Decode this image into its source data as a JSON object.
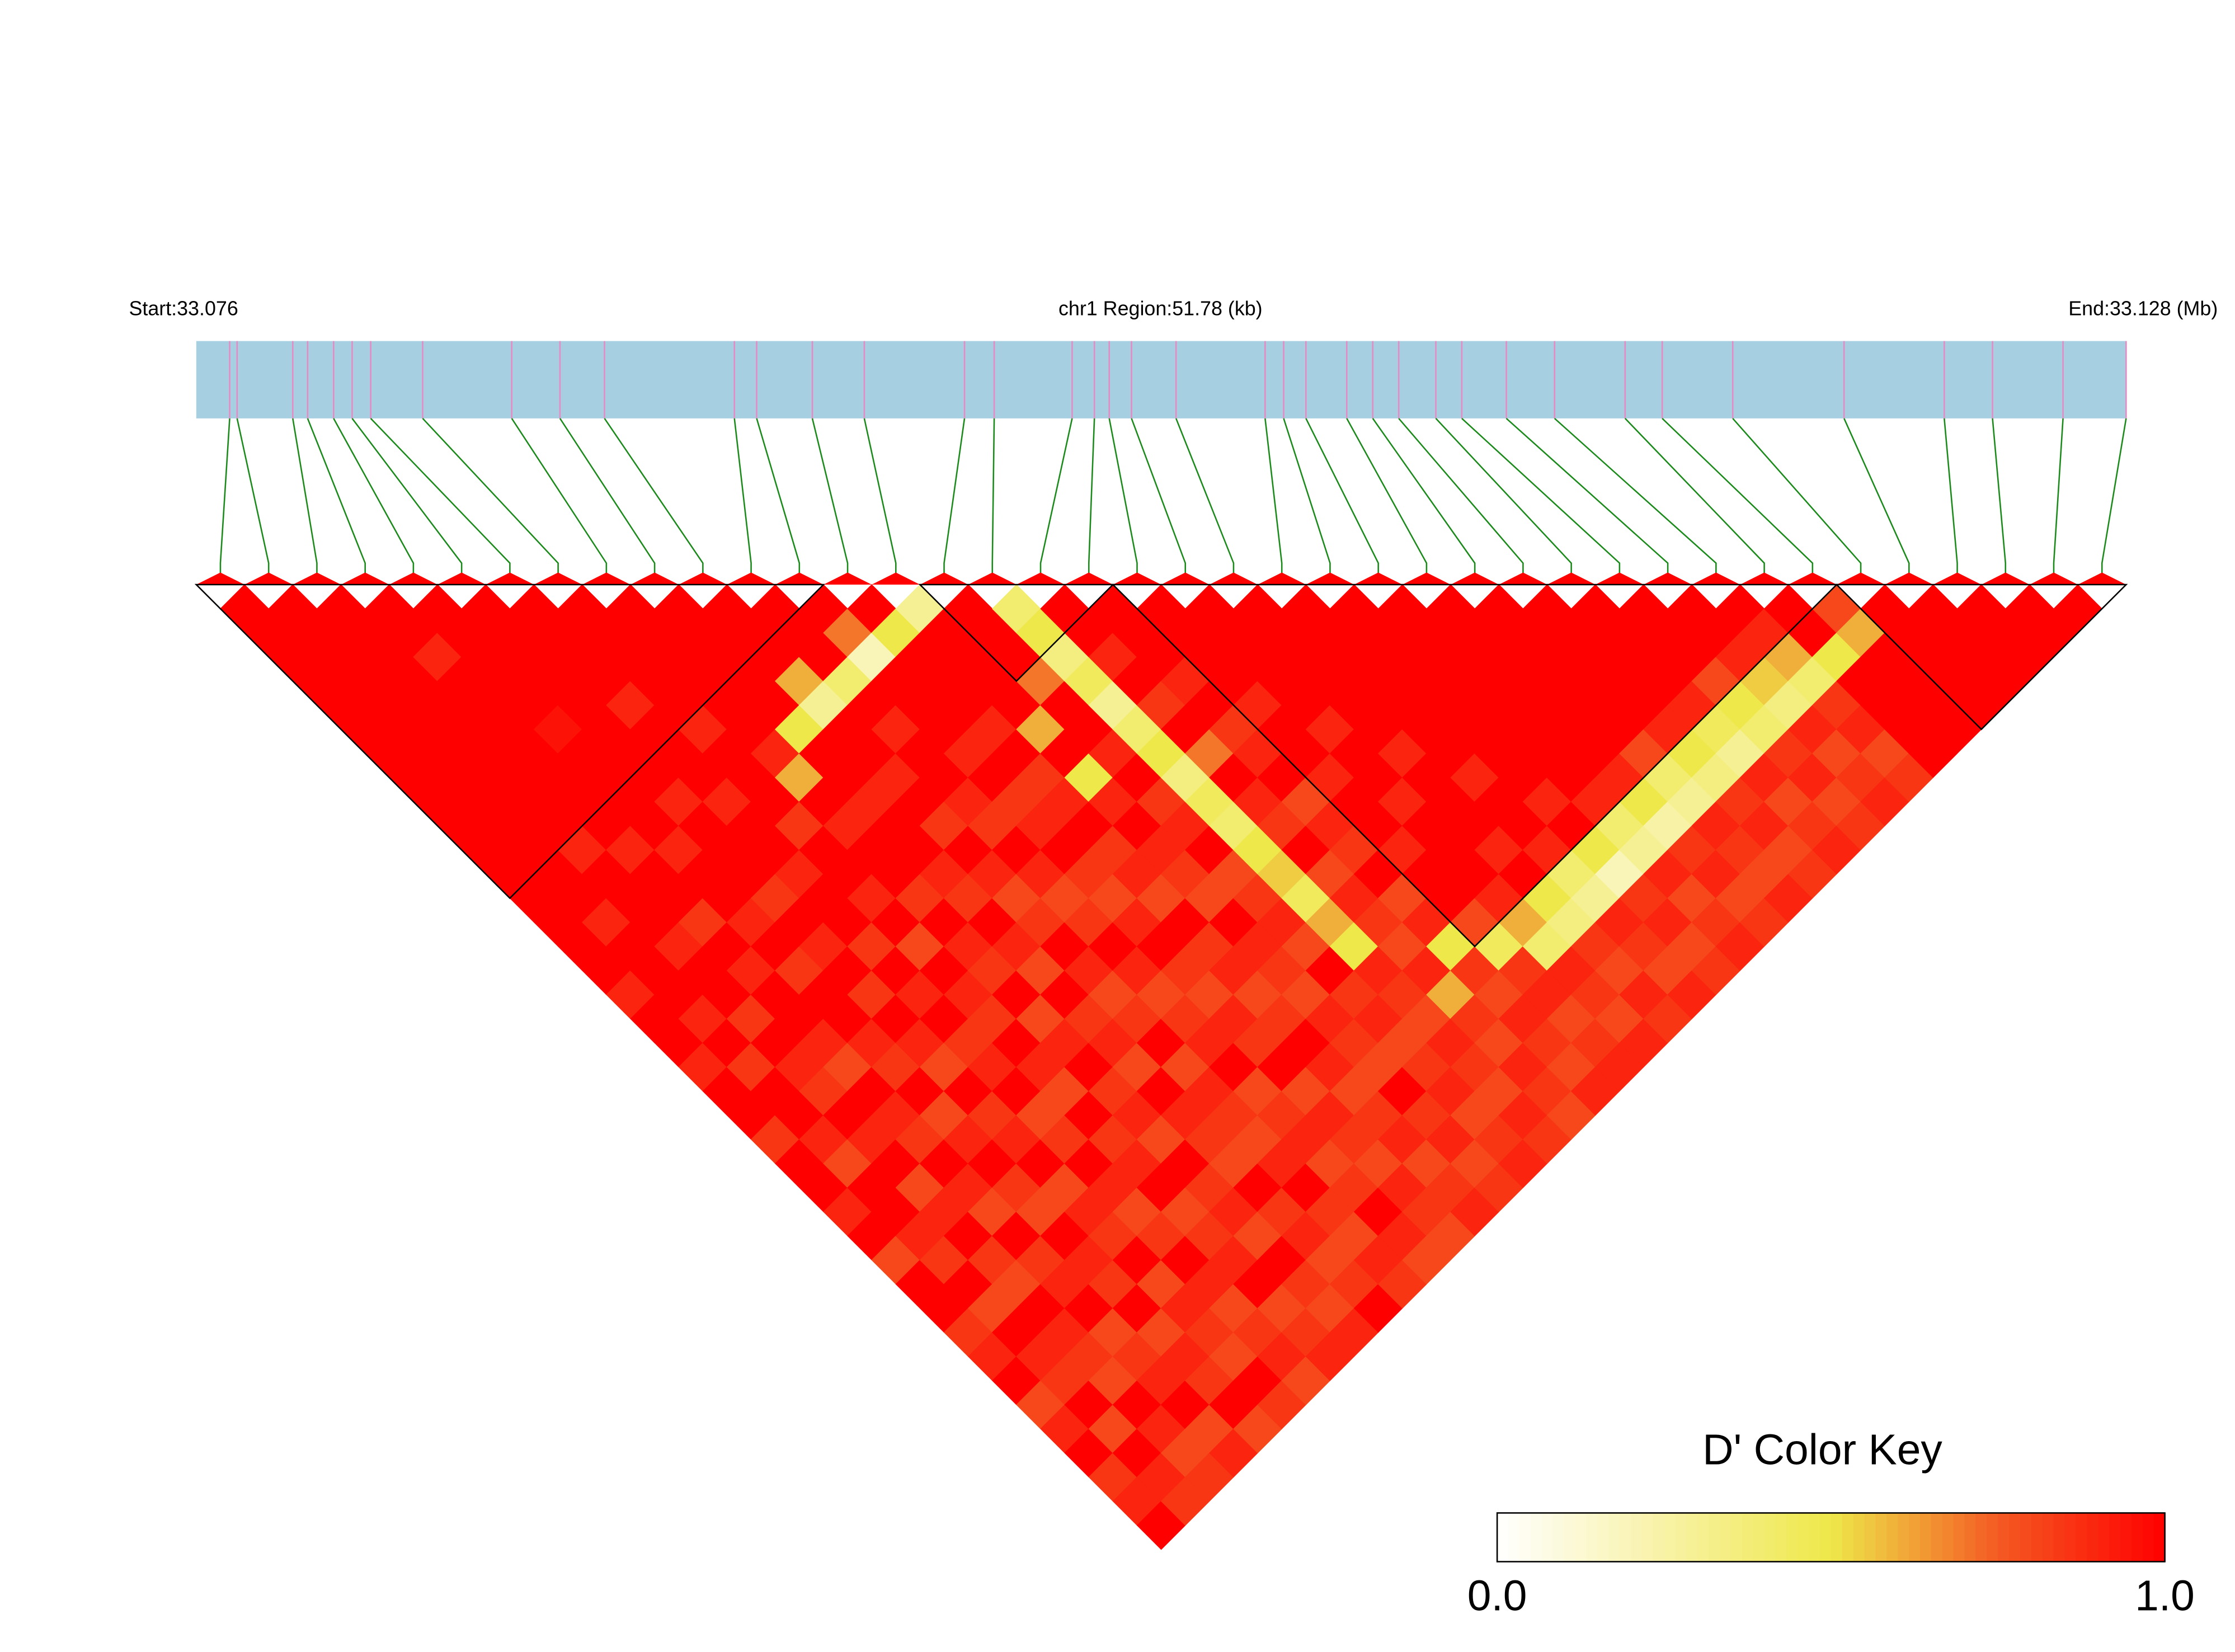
{
  "chart_data": {
    "type": "ld-heatmap",
    "start_label": "Start:33.076",
    "region_label": "chr1 Region:51.78 (kb)",
    "end_label": "End:33.128 (Mb)",
    "key_title": "D' Color Key",
    "key_ticks": [
      {
        "value": 0,
        "label": "0.0"
      },
      {
        "value": 1,
        "label": "1.0"
      }
    ],
    "key_lim": [
      0,
      1
    ],
    "colors": [
      "#ffffff",
      "#f8f2a6",
      "#eee84a",
      "#f45a22",
      "#ff0000"
    ],
    "track_color": "#a6cfe2",
    "snp_line_color": "#e78ac3",
    "link_color": "#1a8a1a",
    "xlim": [
      33.076,
      33.128
    ],
    "positions": [
      33.0769,
      33.0771,
      33.0786,
      33.079,
      33.0797,
      33.0802,
      33.0807,
      33.0821,
      33.0845,
      33.0858,
      33.087,
      33.0905,
      33.0911,
      33.0926,
      33.094,
      33.0967,
      33.0975,
      33.0996,
      33.1002,
      33.1006,
      33.1012,
      33.1024,
      33.1048,
      33.1053,
      33.1059,
      33.107,
      33.1077,
      33.1084,
      33.1094,
      33.1101,
      33.1113,
      33.1126,
      33.1145,
      33.1155,
      33.1174,
      33.1204,
      33.1231,
      33.1244,
      33.1263,
      33.128
    ],
    "blocks": [
      [
        0,
        12
      ],
      [
        15,
        18
      ],
      [
        19,
        33
      ],
      [
        34,
        39
      ]
    ],
    "matrix": [
      [
        1,
        1,
        1,
        1,
        1,
        1,
        1,
        1,
        1,
        1,
        1,
        1,
        1,
        1,
        1,
        1,
        0.9,
        1,
        1,
        0.9,
        1,
        1,
        0.85,
        1,
        1,
        0.9,
        1,
        0.8,
        1,
        1,
        0.85,
        0.9,
        1,
        0.8,
        0.9,
        1,
        0.85,
        0.9,
        1
      ],
      [
        1,
        1,
        1,
        1,
        1,
        1,
        1,
        1,
        1,
        1,
        1,
        1,
        1,
        0.9,
        1,
        1,
        1,
        0.9,
        1,
        0.85,
        1,
        1,
        0.9,
        0.8,
        1,
        1,
        0.9,
        0.85,
        1,
        0.8,
        1,
        0.9,
        0.85,
        1,
        0.8,
        1,
        0.9,
        0.85
      ],
      [
        1,
        1,
        1,
        1,
        1,
        1,
        1,
        1,
        1,
        1,
        0.9,
        1,
        1,
        1,
        0.9,
        1,
        1,
        0.85,
        1,
        0.9,
        0.85,
        1,
        0.9,
        1,
        0.8,
        0.9,
        1,
        0.85,
        0.8,
        1,
        0.9,
        0.85,
        0.8,
        1,
        0.9,
        0.8,
        0.85
      ],
      [
        1,
        1,
        0.9,
        1,
        1,
        1,
        1,
        1,
        1,
        1,
        0.9,
        1,
        1,
        0.85,
        1,
        0.9,
        1,
        1,
        0.9,
        0.8,
        1,
        0.9,
        0.85,
        1,
        0.9,
        0.8,
        1,
        0.85,
        0.9,
        1,
        0.8,
        0.85,
        0.9,
        1,
        0.8,
        0.9
      ],
      [
        1,
        1,
        1,
        1,
        1,
        0.95,
        1,
        1,
        1,
        1,
        0.9,
        1,
        1,
        0.9,
        1,
        0.85,
        1,
        1,
        0.9,
        0.85,
        1,
        0.8,
        0.9,
        1,
        0.85,
        0.8,
        1,
        0.9,
        0.85,
        1,
        0.8,
        0.9,
        0.85,
        1,
        0.8
      ],
      [
        1,
        1,
        1,
        1,
        1,
        1,
        1,
        1,
        0.9,
        1,
        1,
        1,
        0.85,
        1,
        0.9,
        1,
        0.85,
        1,
        0.9,
        0.8,
        1,
        0.85,
        0.9,
        1,
        0.8,
        0.9,
        0.85,
        1,
        0.8,
        0.9,
        0.85,
        0.8,
        1,
        0.85
      ],
      [
        1,
        1,
        1,
        1,
        0.9,
        1,
        1,
        1,
        0.9,
        1,
        1,
        0.9,
        1,
        1,
        0.85,
        1,
        0.9,
        1,
        0.85,
        0.9,
        1,
        0.8,
        0.85,
        1,
        0.9,
        0.8,
        0.85,
        1,
        0.9,
        0.8,
        0.85,
        0.9,
        0.8
      ],
      [
        1,
        1,
        1,
        1,
        1,
        0.9,
        1,
        1,
        1,
        0.85,
        1,
        1,
        0.9,
        1,
        0.8,
        1,
        0.9,
        0.85,
        1,
        0.9,
        0.8,
        1,
        0.85,
        0.9,
        1,
        0.8,
        0.85,
        0.9,
        1,
        0.8,
        0.85,
        0.9
      ],
      [
        1,
        1,
        1,
        1,
        1,
        1,
        0.9,
        0.6,
        1,
        0.9,
        1,
        1,
        0.85,
        1,
        0.9,
        0.85,
        1,
        0.8,
        0.9,
        1,
        0.85,
        0.9,
        0.8,
        1,
        0.85,
        0.9,
        0.8,
        1,
        0.85,
        0.8,
        0.9
      ],
      [
        1,
        1,
        1,
        1,
        1,
        0.5,
        1,
        1,
        0.9,
        1,
        1,
        0.9,
        0.85,
        1,
        0.9,
        0.8,
        1,
        0.85,
        0.9,
        0.8,
        1,
        0.9,
        0.85,
        0.8,
        1,
        0.85,
        0.9,
        0.8,
        0.85,
        1
      ],
      [
        1,
        1,
        1,
        0.6,
        0.3,
        1,
        1,
        0.9,
        1,
        0.85,
        1,
        0.9,
        0.8,
        0.85,
        1,
        0.9,
        0.8,
        0.85,
        1,
        0.8,
        0.9,
        0.85,
        0.8,
        0.9,
        1,
        0.85,
        0.8,
        0.9,
        0.85
      ],
      [
        1,
        1,
        1,
        0.4,
        1,
        0.9,
        1,
        1,
        0.9,
        0.85,
        1,
        0.9,
        0.8,
        0.85,
        1,
        0.9,
        0.8,
        0.85,
        0.9,
        1,
        0.8,
        0.85,
        0.9,
        0.8,
        0.85,
        1,
        0.9,
        0.8
      ],
      [
        1,
        0.7,
        0.2,
        1,
        1,
        1,
        0.9,
        1,
        0.85,
        0.9,
        1,
        0.85,
        0.8,
        0.9,
        1,
        0.85,
        0.8,
        0.9,
        0.85,
        1,
        0.8,
        0.9,
        0.85,
        0.8,
        0.9,
        0.85,
        0.8
      ],
      [
        1,
        0.5,
        1,
        1,
        1,
        0.9,
        1,
        0.85,
        0.9,
        1,
        0.85,
        0.9,
        0.8,
        1,
        0.85,
        0.9,
        0.8,
        0.85,
        1,
        0.9,
        0.8,
        0.85,
        0.9,
        0.8,
        0.85,
        0.9
      ],
      [
        0.3,
        1,
        1,
        1,
        1,
        0.6,
        1,
        0.5,
        0.9,
        1,
        0.9,
        0.85,
        0.8,
        1,
        0.9,
        0.85,
        0.8,
        0.9,
        0.85,
        0.8,
        1,
        0.85,
        0.9,
        0.8,
        0.85
      ],
      [
        1,
        1,
        1,
        0.7,
        1,
        1,
        0.9,
        1,
        0.85,
        0.9,
        1,
        0.8,
        0.85,
        0.9,
        0.8,
        1,
        0.85,
        0.9,
        0.8,
        0.85,
        0.9,
        0.8,
        0.85,
        0.9
      ],
      [
        0.4,
        0.5,
        0.35,
        0.45,
        0.3,
        0.4,
        0.5,
        0.35,
        0.45,
        0.4,
        0.5,
        0.55,
        0.45,
        0.6,
        0.5,
        0.9,
        0.85,
        0.8,
        0.9,
        0.85,
        0.8,
        0.9,
        0.85
      ],
      [
        1,
        1,
        0.9,
        1,
        0.85,
        1,
        0.7,
        1,
        0.9,
        0.85,
        1,
        0.8,
        0.9,
        0.85,
        0.8,
        0.9,
        0.6,
        0.85,
        0.8,
        0.9,
        0.85,
        0.8
      ],
      [
        1,
        1,
        1,
        0.9,
        1,
        0.85,
        0.9,
        1,
        0.8,
        0.9,
        0.85,
        1,
        0.8,
        0.9,
        0.5,
        0.85,
        0.8,
        0.9,
        0.85,
        0.8,
        0.9
      ],
      [
        1,
        1,
        1,
        1,
        0.9,
        1,
        1,
        0.9,
        1,
        1,
        0.9,
        1,
        1,
        0.8,
        0.45,
        0.85,
        0.9,
        0.8,
        0.85,
        0.9
      ],
      [
        1,
        1,
        1,
        1,
        1,
        0.9,
        1,
        1,
        0.9,
        1,
        1,
        1,
        0.9,
        0.6,
        0.4,
        0.9,
        0.85,
        0.8,
        0.9
      ],
      [
        1,
        1,
        1,
        1,
        1,
        1,
        0.9,
        1,
        1,
        1,
        0.9,
        1,
        0.5,
        0.35,
        0.85,
        0.8,
        0.9,
        0.85
      ],
      [
        1,
        1,
        1,
        1,
        1,
        1,
        1,
        0.9,
        1,
        1,
        0.9,
        0.4,
        0.3,
        0.9,
        0.85,
        0.8,
        0.9
      ],
      [
        1,
        1,
        1,
        1,
        1,
        1,
        1,
        1,
        0.9,
        1,
        0.5,
        0.2,
        0.85,
        0.9,
        0.8,
        0.85
      ],
      [
        1,
        1,
        1,
        1,
        1,
        1,
        1,
        1,
        0.9,
        0.4,
        0.3,
        0.9,
        0.8,
        0.85,
        0.9
      ],
      [
        1,
        1,
        1,
        1,
        1,
        1,
        1,
        0.9,
        0.5,
        0.25,
        0.85,
        0.9,
        0.8,
        0.85
      ],
      [
        1,
        1,
        1,
        1,
        1,
        1,
        0.8,
        0.4,
        0.3,
        0.9,
        0.85,
        0.8,
        0.9
      ],
      [
        1,
        1,
        1,
        1,
        1,
        0.9,
        0.5,
        0.35,
        0.85,
        0.9,
        0.8,
        0.85
      ],
      [
        1,
        1,
        1,
        1,
        0.9,
        0.45,
        0.3,
        0.9,
        0.8,
        0.85,
        0.9
      ],
      [
        1,
        1,
        1,
        0.8,
        0.5,
        0.4,
        0.85,
        0.9,
        0.8,
        0.85
      ],
      [
        1,
        1,
        0.9,
        0.55,
        0.35,
        0.9,
        0.8,
        0.85,
        0.9
      ],
      [
        1,
        0.9,
        0.6,
        0.4,
        0.85,
        0.9,
        0.8,
        0.85
      ],
      [
        1,
        1,
        0.5,
        1,
        1,
        1,
        1
      ],
      [
        0.8,
        0.6,
        1,
        1,
        1,
        1
      ],
      [
        1,
        1,
        1,
        1,
        1
      ],
      [
        1,
        1,
        1,
        1
      ],
      [
        1,
        1,
        1
      ],
      [
        1,
        1
      ],
      [
        1
      ]
    ]
  }
}
